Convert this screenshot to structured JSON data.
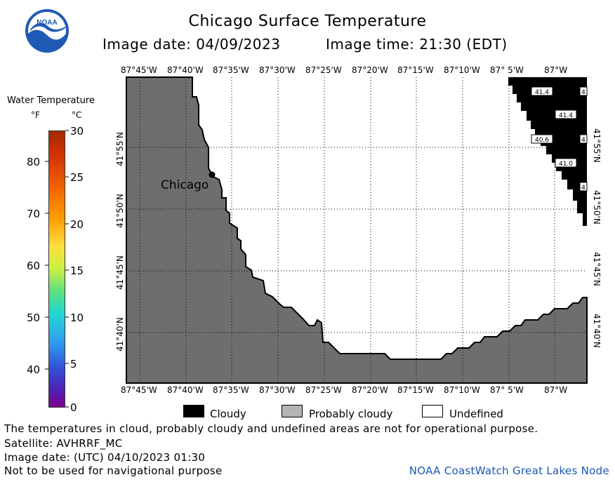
{
  "header": {
    "title": "Chicago Surface Temperature",
    "image_date": "Image date: 04/09/2023",
    "image_time": "Image time: 21:30 (EDT)"
  },
  "logo": {
    "text": "NOAA",
    "icon": "noaa-logo-icon"
  },
  "scale": {
    "title": "Water Temperature",
    "unit_f": "°F",
    "unit_c": "°C",
    "f_ticks": [
      "80",
      "70",
      "60",
      "50",
      "40"
    ],
    "c_ticks": [
      "30",
      "25",
      "20",
      "15",
      "10",
      "5",
      "0"
    ],
    "colors": [
      "#d02000",
      "#ff7a00",
      "#ffd000",
      "#a0e040",
      "#20d8c0",
      "#2090e8",
      "#3030c0",
      "#800090"
    ]
  },
  "map": {
    "top_lon_labels": [
      "87°45'W",
      "87°40'W",
      "87°35'W",
      "87°30'W",
      "87°25'W",
      "87°20'W",
      "87°15'W",
      "87°10'W",
      "87° 5'W",
      "87°W"
    ],
    "bottom_lon_labels": [
      "87°45'W",
      "87°40'W",
      "87°35'W",
      "87°30'W",
      "87°25'W",
      "87°20'W",
      "87°15'W",
      "87°10'W",
      "87° 5'W",
      "87°W"
    ],
    "lat_labels_left": [
      "41°55'N",
      "41°50'N",
      "41°45'N",
      "41°40'N"
    ],
    "lat_labels_right": [
      "41°55'N",
      "41°50'N",
      "41°45'N",
      "41°40'N"
    ],
    "city": "Chicago",
    "cloud_values": [
      "41.4",
      "4",
      "41.4",
      "40.6",
      "4",
      "41.0",
      "4"
    ],
    "colors": {
      "land": "#6e6e6e",
      "cloud": "#000000",
      "undefined": "#ffffff"
    }
  },
  "legend": {
    "items": [
      {
        "label": "Cloudy",
        "color": "#000000"
      },
      {
        "label": "Probably cloudy",
        "color": "#b4b4b4"
      },
      {
        "label": "Undefined",
        "color": "#ffffff"
      }
    ]
  },
  "notes": {
    "line1": "The temperatures in cloud, probably cloudy and undefined areas are not for operational purpose.",
    "line2": "Satellite: AVHRRF_MC",
    "line3": "Image date: (UTC) 04/10/2023  01:30",
    "line4": "Not to be used for navigational purpose",
    "credit": "NOAA CoastWatch Great Lakes Node"
  }
}
